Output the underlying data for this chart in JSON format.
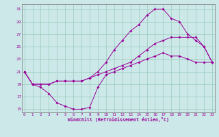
{
  "xlabel": "Windchill (Refroidissement éolien,°C)",
  "bg_color": "#cce8e8",
  "line_color": "#990099",
  "grid_color": "#99ccbb",
  "xlim_min": -0.3,
  "xlim_max": 23.3,
  "ylim_min": 14.5,
  "ylim_max": 31.8,
  "xticks": [
    0,
    1,
    2,
    3,
    4,
    5,
    6,
    7,
    8,
    9,
    10,
    11,
    12,
    13,
    14,
    15,
    16,
    17,
    18,
    19,
    20,
    21,
    22,
    23
  ],
  "yticks": [
    15,
    17,
    19,
    21,
    23,
    25,
    27,
    29,
    31
  ],
  "line1_x": [
    0,
    1,
    2,
    3,
    4,
    5,
    6,
    7,
    8,
    9,
    10,
    11,
    12,
    13,
    14,
    15,
    16,
    17,
    18,
    19,
    20,
    21,
    22,
    23
  ],
  "line1_y": [
    21,
    19,
    18.5,
    17.5,
    16.0,
    15.5,
    15.0,
    15.0,
    15.3,
    18.5,
    20.5,
    21.0,
    21.5,
    22.0,
    22.5,
    23.0,
    23.5,
    24.0,
    23.5,
    23.5,
    23.0,
    22.5,
    22.5,
    22.5
  ],
  "line2_x": [
    0,
    1,
    2,
    3,
    4,
    5,
    6,
    7,
    8,
    9,
    10,
    11,
    12,
    13,
    14,
    15,
    16,
    17,
    18,
    19,
    20,
    21,
    22,
    23
  ],
  "line2_y": [
    21,
    19,
    19,
    19,
    19.5,
    19.5,
    19.5,
    19.5,
    20,
    20.5,
    21,
    21.5,
    22,
    22.5,
    23.5,
    24.5,
    25.5,
    26,
    26.5,
    26.5,
    26.5,
    26.5,
    25,
    22.5
  ],
  "line3_x": [
    0,
    1,
    2,
    3,
    4,
    5,
    6,
    7,
    8,
    9,
    10,
    11,
    12,
    13,
    14,
    15,
    16,
    17,
    18,
    19,
    20,
    21,
    22,
    23
  ],
  "line3_y": [
    21,
    19,
    19,
    19,
    19.5,
    19.5,
    19.5,
    19.5,
    20,
    21,
    22.5,
    24.5,
    26,
    27.5,
    28.5,
    30,
    31,
    31,
    29.5,
    29,
    27,
    26,
    25,
    22.5
  ]
}
